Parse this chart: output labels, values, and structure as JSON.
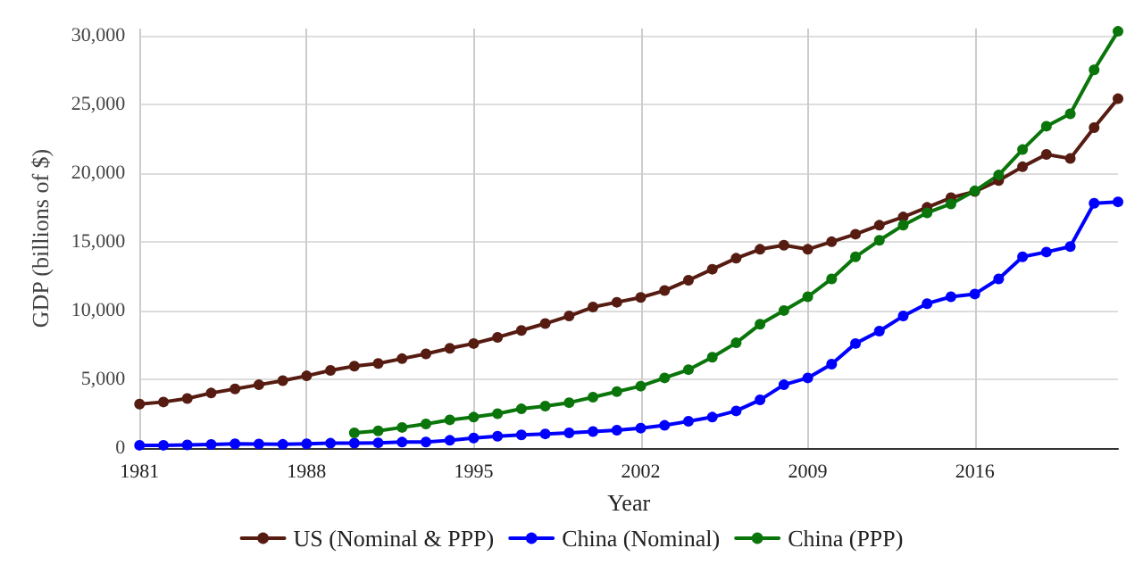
{
  "chart_data": {
    "type": "line",
    "xlabel": "Year",
    "ylabel": "GDP (billions of $)",
    "x": [
      1981,
      1982,
      1983,
      1984,
      1985,
      1986,
      1987,
      1988,
      1989,
      1990,
      1991,
      1992,
      1993,
      1994,
      1995,
      1996,
      1997,
      1998,
      1999,
      2000,
      2001,
      2002,
      2003,
      2004,
      2005,
      2006,
      2007,
      2008,
      2009,
      2010,
      2011,
      2012,
      2013,
      2014,
      2015,
      2016,
      2017,
      2018,
      2019,
      2020,
      2021,
      2022
    ],
    "series": [
      {
        "name": "US (Nominal & PPP)",
        "color": "#561c12",
        "values": [
          3200,
          3350,
          3600,
          4000,
          4300,
          4600,
          4900,
          5250,
          5650,
          5950,
          6150,
          6500,
          6850,
          7250,
          7600,
          8050,
          8550,
          9050,
          9600,
          10250,
          10600,
          10950,
          11450,
          12200,
          13000,
          13800,
          14450,
          14750,
          14450,
          15000,
          15550,
          16200,
          16800,
          17500,
          18200,
          18650,
          19450,
          20450,
          21350,
          21050,
          23300,
          25400
        ]
      },
      {
        "name": "China (Nominal)",
        "color": "#0000ff",
        "values": [
          200,
          200,
          230,
          260,
          310,
          300,
          270,
          310,
          350,
          360,
          380,
          430,
          440,
          560,
          730,
          860,
          960,
          1030,
          1100,
          1200,
          1300,
          1450,
          1650,
          1950,
          2250,
          2700,
          3500,
          4600,
          5100,
          6100,
          7600,
          8500,
          9600,
          10500,
          11000,
          11200,
          12300,
          13900,
          14250,
          14650,
          17800,
          17900
        ]
      },
      {
        "name": "China (PPP)",
        "color": "#0a750a",
        "values": [
          null,
          null,
          null,
          null,
          null,
          null,
          null,
          null,
          null,
          1100,
          1250,
          1500,
          1750,
          2050,
          2250,
          2500,
          2850,
          3050,
          3300,
          3700,
          4100,
          4500,
          5100,
          5700,
          6600,
          7650,
          9000,
          10000,
          11000,
          12300,
          13900,
          15100,
          16200,
          17100,
          17750,
          18700,
          19850,
          21700,
          23400,
          24300,
          27500,
          30300
        ]
      }
    ],
    "xlim": [
      1981,
      2022
    ],
    "xticks": [
      1981,
      1988,
      1995,
      2002,
      2009,
      2016
    ],
    "ylim": [
      0,
      30500
    ],
    "yticks": [
      0,
      {
        "value": 5000,
        "label": "5,000"
      },
      {
        "value": 10000,
        "label": "10,000"
      },
      {
        "value": 15000,
        "label": "15,000"
      },
      {
        "value": 20000,
        "label": "20,000"
      },
      {
        "value": 25000,
        "label": "25,000"
      },
      {
        "value": 30000,
        "label": "30,000"
      }
    ],
    "grid": true,
    "legend": "bottom",
    "marker": "circle",
    "line_style": "solid"
  }
}
